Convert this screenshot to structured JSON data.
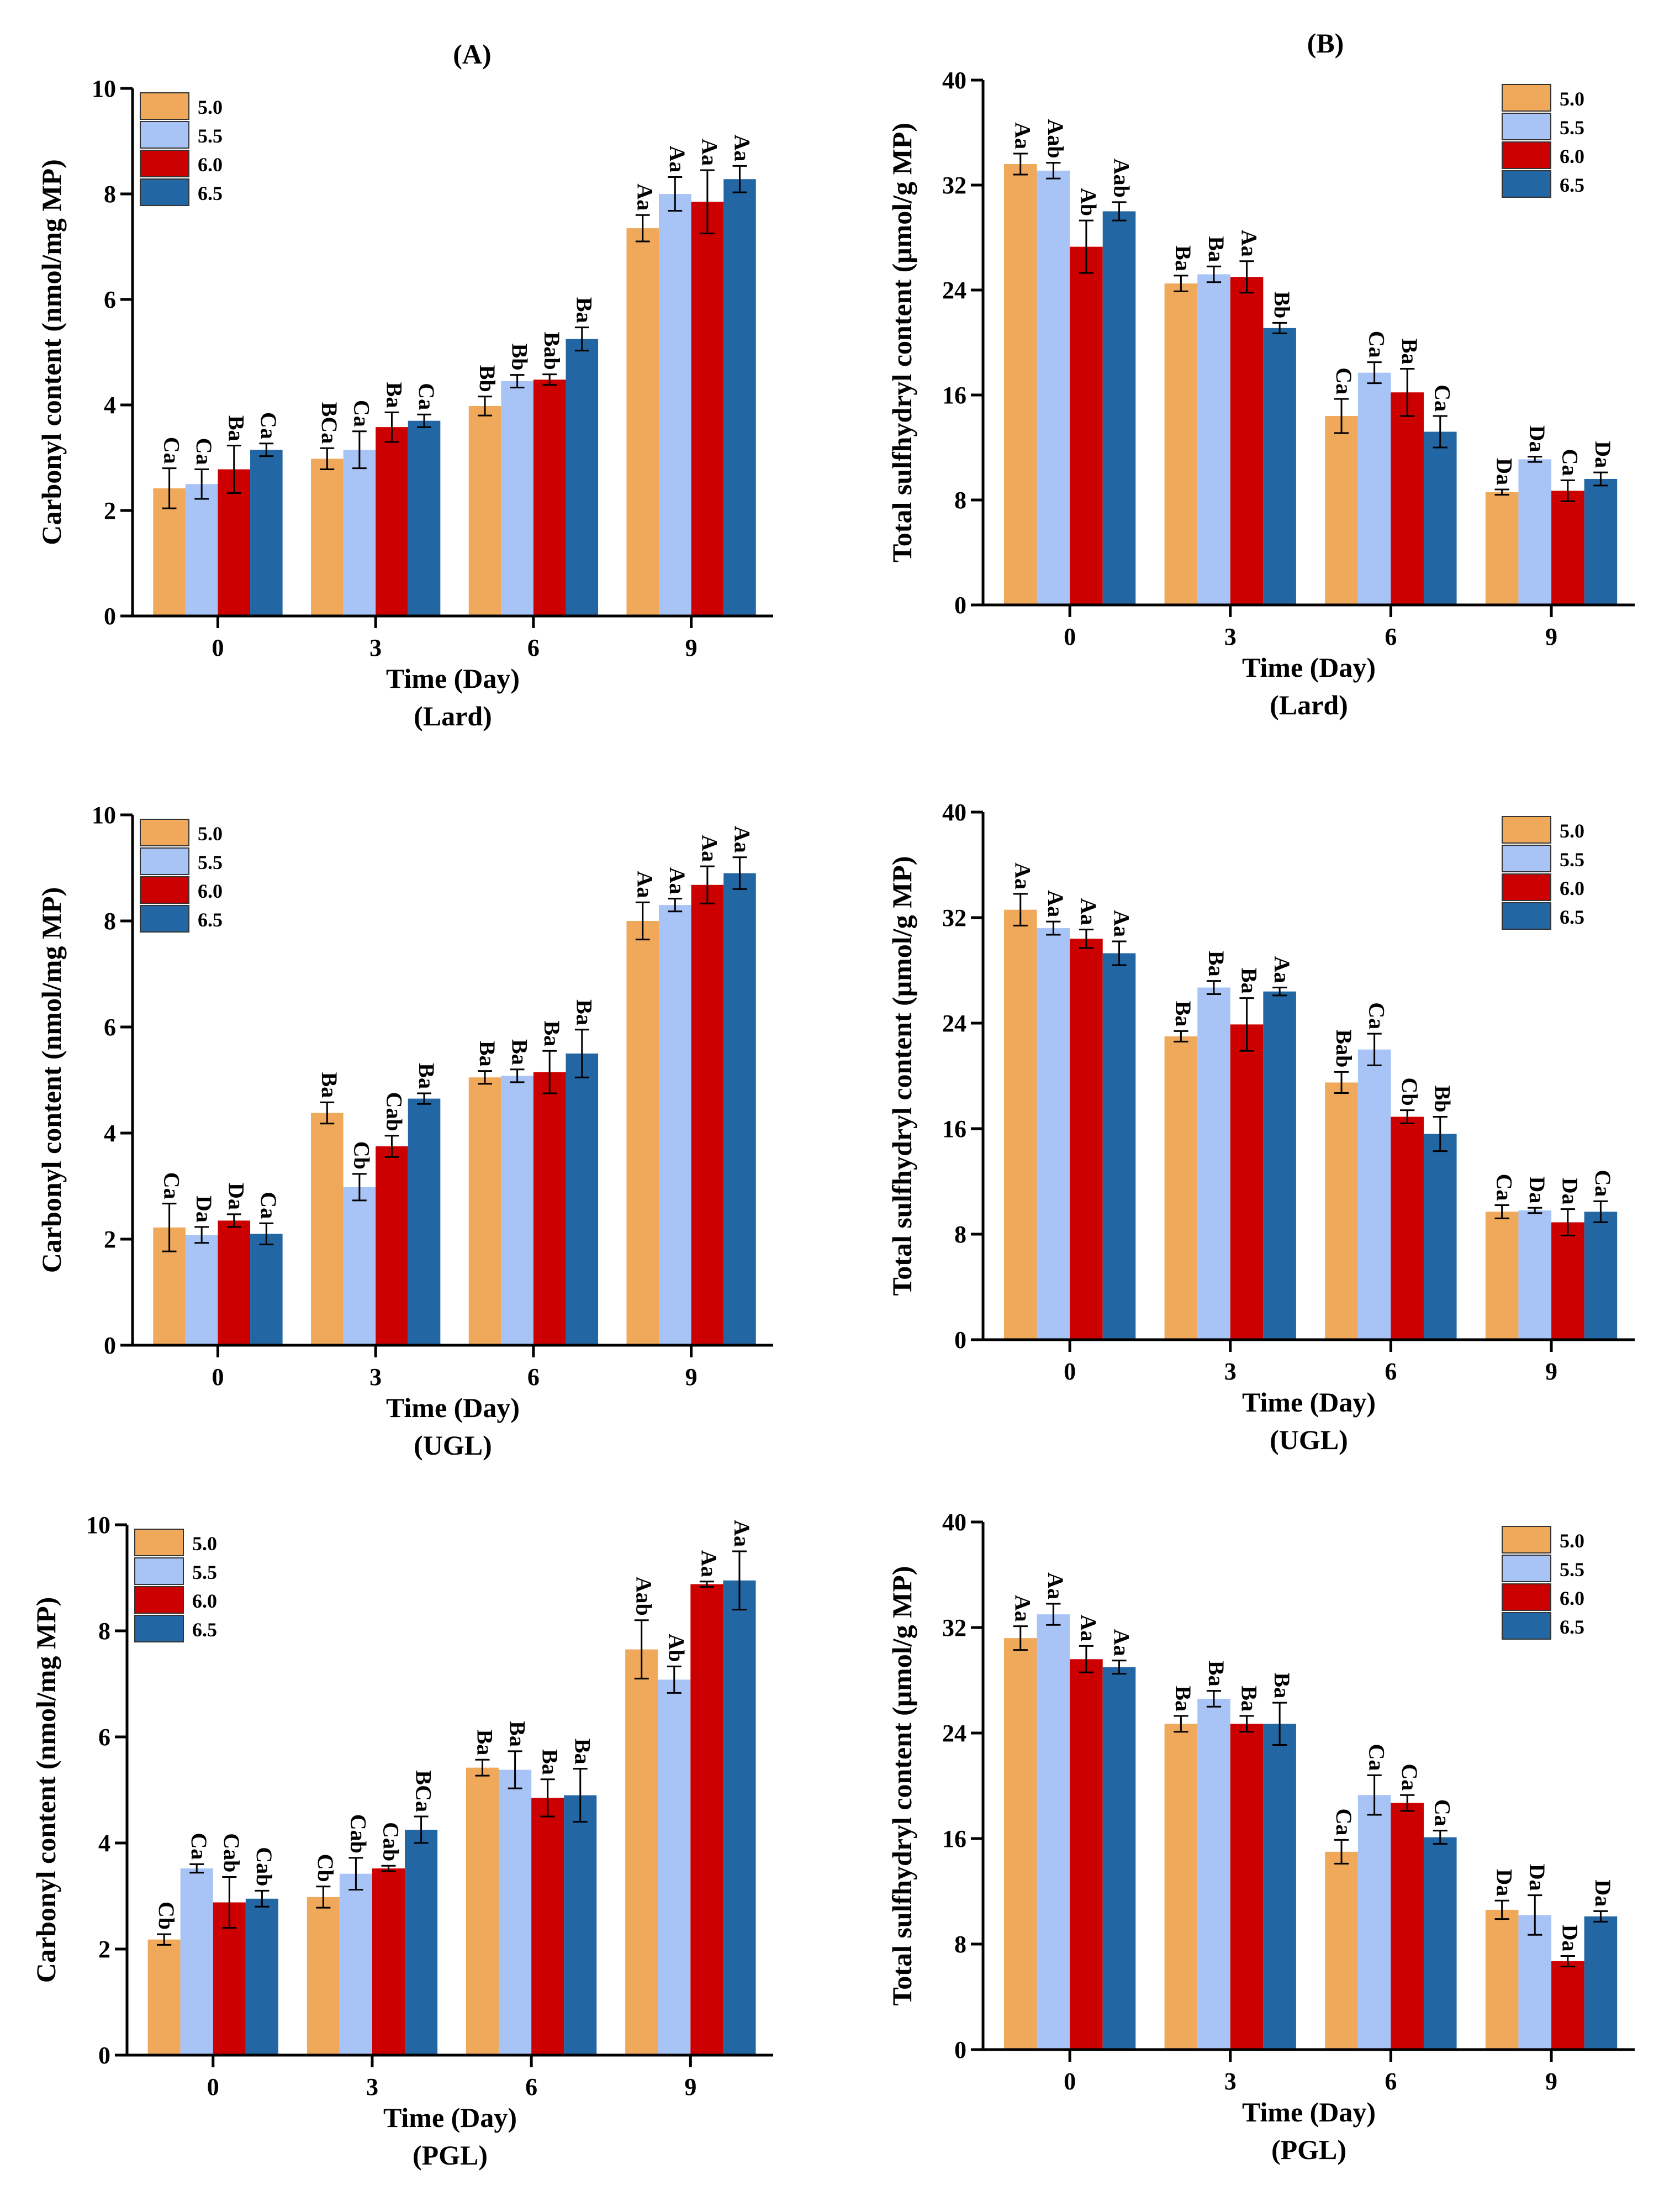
{
  "figure": {
    "panel_titles": [
      "(A)",
      "(B)"
    ],
    "colors": {
      "5.0": "#f0a95a",
      "5.5": "#a8c3f6",
      "6.0": "#cc0000",
      "6.5": "#2266a3"
    }
  },
  "chart_data": [
    {
      "type": "bar",
      "id": "carbonyl-lard",
      "title": "(A)",
      "group": "(Lard)",
      "xlabel": "Time (Day)",
      "ylabel": "Carbonyl content (nmol/mg MP)",
      "ylim": [
        0,
        10
      ],
      "yticks": [
        0,
        2,
        4,
        6,
        8,
        10
      ],
      "legend": "top-left",
      "categories": [
        "0",
        "3",
        "6",
        "9"
      ],
      "series": [
        {
          "name": "5.0",
          "values": [
            2.42,
            2.98,
            3.98,
            7.35
          ],
          "errors": [
            0.38,
            0.2,
            0.18,
            0.25
          ],
          "labels": [
            "Ca",
            "BCa",
            "Bb",
            "Aa"
          ]
        },
        {
          "name": "5.5",
          "values": [
            2.5,
            3.15,
            4.45,
            8.0
          ],
          "errors": [
            0.28,
            0.35,
            0.12,
            0.32
          ],
          "labels": [
            "Ca",
            "Ca",
            "Bb",
            "Aa"
          ]
        },
        {
          "name": "6.0",
          "values": [
            2.78,
            3.58,
            4.48,
            7.85
          ],
          "errors": [
            0.45,
            0.28,
            0.1,
            0.6
          ],
          "labels": [
            "Ba",
            "Ba",
            "Bab",
            "Aa"
          ]
        },
        {
          "name": "6.5",
          "values": [
            3.15,
            3.7,
            5.25,
            8.28
          ],
          "errors": [
            0.12,
            0.12,
            0.22,
            0.25
          ],
          "labels": [
            "Ca",
            "Ca",
            "Ba",
            "Aa"
          ]
        }
      ]
    },
    {
      "type": "bar",
      "id": "sulfhydryl-lard",
      "title": "(B)",
      "group": "(Lard)",
      "xlabel": "Time (Day)",
      "ylabel": "Total sulfhydryl content (μmol/g MP)",
      "ylim": [
        0,
        40
      ],
      "yticks": [
        0,
        8,
        16,
        24,
        32,
        40
      ],
      "legend": "top-right",
      "categories": [
        "0",
        "3",
        "6",
        "9"
      ],
      "series": [
        {
          "name": "5.0",
          "values": [
            33.6,
            24.5,
            14.4,
            8.6
          ],
          "errors": [
            0.8,
            0.6,
            1.3,
            0.2
          ],
          "labels": [
            "Aa",
            "Ba",
            "Ca",
            "Da"
          ]
        },
        {
          "name": "5.5",
          "values": [
            33.1,
            25.2,
            17.7,
            11.1
          ],
          "errors": [
            0.6,
            0.6,
            0.8,
            0.2
          ],
          "labels": [
            "Aab",
            "Ba",
            "Ca",
            "Da"
          ]
        },
        {
          "name": "6.0",
          "values": [
            27.3,
            25.0,
            16.2,
            8.7
          ],
          "errors": [
            2.0,
            1.2,
            1.8,
            0.8
          ],
          "labels": [
            "Ab",
            "Aa",
            "Ba",
            "Ca"
          ]
        },
        {
          "name": "6.5",
          "values": [
            30.0,
            21.1,
            13.2,
            9.6
          ],
          "errors": [
            0.7,
            0.4,
            1.2,
            0.5
          ],
          "labels": [
            "Aab",
            "Bb",
            "Ca",
            "Da"
          ]
        }
      ]
    },
    {
      "type": "bar",
      "id": "carbonyl-ugl",
      "title": "",
      "group": "(UGL)",
      "xlabel": "Time (Day)",
      "ylabel": "Carbonyl content (nmol/mg MP)",
      "ylim": [
        0,
        10
      ],
      "yticks": [
        0,
        2,
        4,
        6,
        8,
        10
      ],
      "legend": "top-left",
      "categories": [
        "0",
        "3",
        "6",
        "9"
      ],
      "series": [
        {
          "name": "5.0",
          "values": [
            2.22,
            4.38,
            5.05,
            8.0
          ],
          "errors": [
            0.45,
            0.2,
            0.12,
            0.35
          ],
          "labels": [
            "Ca",
            "Ba",
            "Ba",
            "Aa"
          ]
        },
        {
          "name": "5.5",
          "values": [
            2.08,
            2.98,
            5.08,
            8.3
          ],
          "errors": [
            0.15,
            0.25,
            0.12,
            0.12
          ],
          "labels": [
            "Da",
            "Cb",
            "Ba",
            "Aa"
          ]
        },
        {
          "name": "6.0",
          "values": [
            2.35,
            3.75,
            5.15,
            8.68
          ],
          "errors": [
            0.12,
            0.2,
            0.4,
            0.35
          ],
          "labels": [
            "Da",
            "Cab",
            "Ba",
            "Aa"
          ]
        },
        {
          "name": "6.5",
          "values": [
            2.1,
            4.65,
            5.5,
            8.9
          ],
          "errors": [
            0.2,
            0.1,
            0.45,
            0.3
          ],
          "labels": [
            "Ca",
            "Ba",
            "Ba",
            "Aa"
          ]
        }
      ]
    },
    {
      "type": "bar",
      "id": "sulfhydryl-ugl",
      "title": "",
      "group": "(UGL)",
      "xlabel": "Time (Day)",
      "ylabel": "Total sulfhydryl content (μmol/g MP)",
      "ylim": [
        0,
        40
      ],
      "yticks": [
        0,
        8,
        16,
        24,
        32,
        40
      ],
      "legend": "top-right",
      "categories": [
        "0",
        "3",
        "6",
        "9"
      ],
      "series": [
        {
          "name": "5.0",
          "values": [
            32.6,
            23.0,
            19.5,
            9.7
          ],
          "errors": [
            1.2,
            0.4,
            0.8,
            0.5
          ],
          "labels": [
            "Aa",
            "Ba",
            "Bab",
            "Ca"
          ]
        },
        {
          "name": "5.5",
          "values": [
            31.2,
            26.7,
            22.0,
            9.8
          ],
          "errors": [
            0.5,
            0.5,
            1.2,
            0.2
          ],
          "labels": [
            "Aa",
            "Ba",
            "Ca",
            "Da"
          ]
        },
        {
          "name": "6.0",
          "values": [
            30.4,
            23.9,
            16.9,
            8.9
          ],
          "errors": [
            0.7,
            2.0,
            0.5,
            1.0
          ],
          "labels": [
            "Aa",
            "Ba",
            "Cb",
            "Da"
          ]
        },
        {
          "name": "6.5",
          "values": [
            29.3,
            26.4,
            15.6,
            9.7
          ],
          "errors": [
            0.9,
            0.3,
            1.3,
            0.8
          ],
          "labels": [
            "Aa",
            "Aa",
            "Bb",
            "Ca"
          ]
        }
      ]
    },
    {
      "type": "bar",
      "id": "carbonyl-pgl",
      "title": "",
      "group": "(PGL)",
      "xlabel": "Time (Day)",
      "ylabel": "Carbonyl content (nmol/mg MP)",
      "ylim": [
        0,
        10
      ],
      "yticks": [
        0,
        2,
        4,
        6,
        8,
        10
      ],
      "legend": "top-left",
      "categories": [
        "0",
        "3",
        "6",
        "9"
      ],
      "series": [
        {
          "name": "5.0",
          "values": [
            2.18,
            2.98,
            5.42,
            7.65
          ],
          "errors": [
            0.1,
            0.2,
            0.15,
            0.55
          ],
          "labels": [
            "Cb",
            "Cb",
            "Ba",
            "Aab"
          ]
        },
        {
          "name": "5.5",
          "values": [
            3.52,
            3.42,
            5.38,
            7.08
          ],
          "errors": [
            0.08,
            0.3,
            0.35,
            0.25
          ],
          "labels": [
            "Ca",
            "Cab",
            "Ba",
            "Ab"
          ]
        },
        {
          "name": "6.0",
          "values": [
            2.88,
            3.52,
            4.85,
            8.88
          ],
          "errors": [
            0.48,
            0.05,
            0.35,
            0.05
          ],
          "labels": [
            "Cab",
            "Cab",
            "Ba",
            "Aa"
          ]
        },
        {
          "name": "6.5",
          "values": [
            2.95,
            4.25,
            4.9,
            8.95
          ],
          "errors": [
            0.15,
            0.25,
            0.5,
            0.55
          ],
          "labels": [
            "Cab",
            "BCa",
            "Ba",
            "Aa"
          ]
        }
      ]
    },
    {
      "type": "bar",
      "id": "sulfhydryl-pgl",
      "title": "",
      "group": "(PGL)",
      "xlabel": "Time (Day)",
      "ylabel": "Total sulfhydryl content (μmol/g MP)",
      "ylim": [
        0,
        40
      ],
      "yticks": [
        0,
        8,
        16,
        24,
        32,
        40
      ],
      "legend": "top-right",
      "categories": [
        "0",
        "3",
        "6",
        "9"
      ],
      "series": [
        {
          "name": "5.0",
          "values": [
            31.2,
            24.7,
            15.0,
            10.6
          ],
          "errors": [
            0.9,
            0.6,
            0.9,
            0.7
          ],
          "labels": [
            "Aa",
            "Ba",
            "Ca",
            "Da"
          ]
        },
        {
          "name": "5.5",
          "values": [
            33.0,
            26.6,
            19.3,
            10.2
          ],
          "errors": [
            0.8,
            0.6,
            1.5,
            1.5
          ],
          "labels": [
            "Aa",
            "Ba",
            "Ca",
            "Da"
          ]
        },
        {
          "name": "6.0",
          "values": [
            29.6,
            24.7,
            18.7,
            6.7
          ],
          "errors": [
            1.0,
            0.6,
            0.6,
            0.4
          ],
          "labels": [
            "Aa",
            "Ba",
            "Ca",
            "Da"
          ]
        },
        {
          "name": "6.5",
          "values": [
            29.0,
            24.7,
            16.1,
            10.1
          ],
          "errors": [
            0.5,
            1.6,
            0.5,
            0.4
          ],
          "labels": [
            "Aa",
            "Ba",
            "Ca",
            "Da"
          ]
        }
      ]
    }
  ]
}
